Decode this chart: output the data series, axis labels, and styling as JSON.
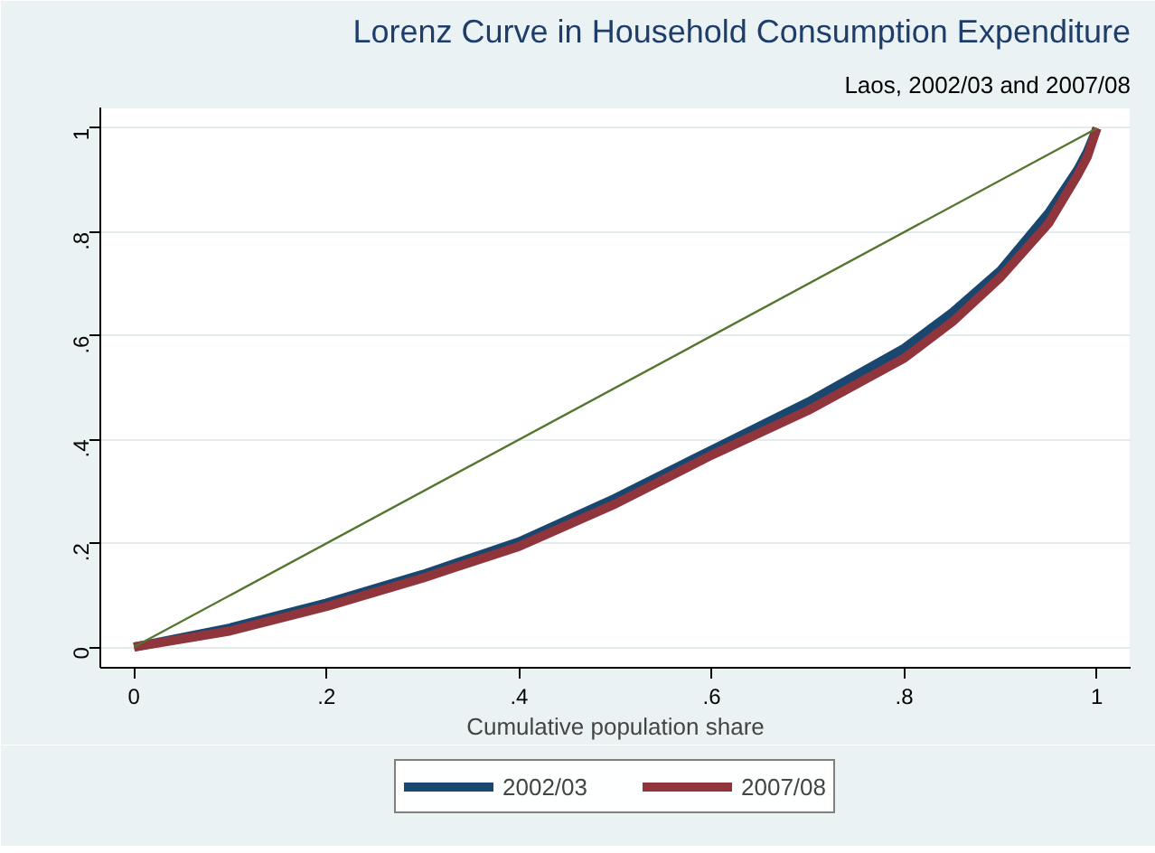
{
  "chart_data": {
    "type": "line",
    "title": "Lorenz Curve in Household Consumption Expenditure",
    "subtitle": "Laos, 2002/03 and 2007/08",
    "xlabel": "Cumulative population share",
    "x": [
      0,
      0.1,
      0.2,
      0.3,
      0.4,
      0.5,
      0.6,
      0.7,
      0.8,
      0.85,
      0.9,
      0.95,
      0.98,
      0.99,
      1
    ],
    "series": [
      {
        "name": "2002/03",
        "color": "#1a476f",
        "values": [
          0,
          0.037,
          0.085,
          0.14,
          0.203,
          0.287,
          0.38,
          0.472,
          0.576,
          0.645,
          0.726,
          0.837,
          0.92,
          0.955,
          1
        ]
      },
      {
        "name": "2007/08",
        "color": "#90353b",
        "values": [
          0,
          0.031,
          0.078,
          0.133,
          0.194,
          0.276,
          0.37,
          0.456,
          0.557,
          0.627,
          0.713,
          0.817,
          0.91,
          0.945,
          1
        ]
      },
      {
        "color": "#55752f",
        "x": [
          0,
          1
        ],
        "values": [
          0,
          1
        ]
      }
    ],
    "xlim": [
      -0.035,
      1.035
    ],
    "ylim": [
      -0.04,
      1.04
    ],
    "xticks": [
      {
        "value": 0,
        "label": "0"
      },
      {
        "value": 0.2,
        "label": ".2"
      },
      {
        "value": 0.4,
        "label": ".4"
      },
      {
        "value": 0.6,
        "label": ".6"
      },
      {
        "value": 0.8,
        "label": ".8"
      },
      {
        "value": 1,
        "label": "1"
      }
    ],
    "yticks": [
      {
        "value": 0,
        "label": "0"
      },
      {
        "value": 0.2,
        "label": ".2"
      },
      {
        "value": 0.4,
        "label": ".4"
      },
      {
        "value": 0.6,
        "label": ".6"
      },
      {
        "value": 0.8,
        "label": ".8"
      },
      {
        "value": 1,
        "label": "1"
      }
    ],
    "grid": "y",
    "legend": "bottom"
  }
}
